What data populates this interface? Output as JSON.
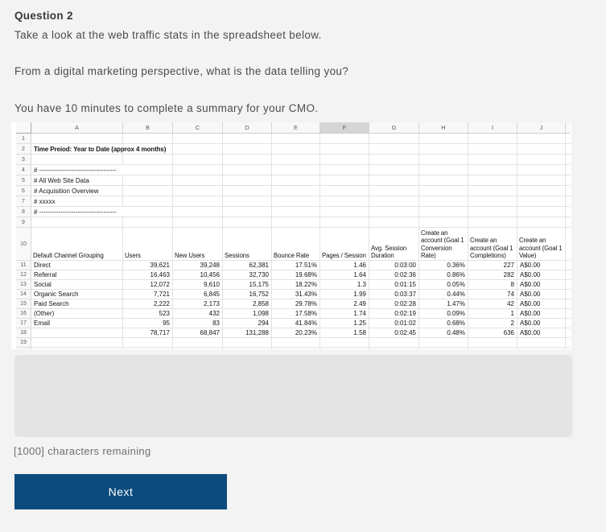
{
  "page": {
    "title": "Question 2",
    "paragraphs": [
      "Take a look at the web traffic stats in the spreadsheet below.",
      "From a digital marketing perspective, what is the data telling you?",
      "You have 10 minutes to complete a summary for your CMO."
    ],
    "answer_value": "",
    "chars_remaining": "[1000] characters remaining",
    "next_label": "Next"
  },
  "colors": {
    "page_bg": "#f3f3f3",
    "button_bg": "#0d4b7e",
    "button_text": "#ffffff",
    "textarea_bg": "#e4e4e4",
    "sheet_bg": "#ffffff",
    "sheet_header_bg": "#f8f8f8",
    "selected_column_bg": "#d5d5d5",
    "gridline": "#e2e2e2"
  },
  "spreadsheet": {
    "selected_column": "F",
    "column_letters": [
      "A",
      "B",
      "C",
      "D",
      "E",
      "F",
      "G",
      "H",
      "I",
      "J"
    ],
    "visible_rows": 19,
    "pre_rows": {
      "2": "Time Preiod: Year to Date (approx 4 months)",
      "4": "# ------------------------------------",
      "5": "# All Web Site Data",
      "6": "# Acquisition Overview",
      "7": "# xxxxx",
      "8": "# ------------------------------------"
    },
    "header_row": [
      "Default Channel Grouping",
      "Users",
      "New Users",
      "Sessions",
      "Bounce Rate",
      "Pages / Session",
      "Avg. Session Duration",
      "Create an account (Goal 1 Conversion Rate)",
      "Create an account (Goal 1 Completions)",
      "Create an account (Goal 1 Value)"
    ],
    "data_rows": [
      [
        "Direct",
        "39,621",
        "39,248",
        "62,381",
        "17.51%",
        "1.46",
        "0:03:00",
        "0.36%",
        "227",
        "A$0.00"
      ],
      [
        "Referral",
        "16,463",
        "10,456",
        "32,730",
        "19.68%",
        "1.64",
        "0:02:36",
        "0.86%",
        "282",
        "A$0.00"
      ],
      [
        "Social",
        "12,072",
        "9,610",
        "15,175",
        "18.22%",
        "1.3",
        "0:01:15",
        "0.05%",
        "8",
        "A$0.00"
      ],
      [
        "Organic Search",
        "7,721",
        "6,845",
        "16,752",
        "31.43%",
        "1.99",
        "0:03:37",
        "0.44%",
        "74",
        "A$0.00"
      ],
      [
        "Paid Search",
        "2,222",
        "2,173",
        "2,858",
        "29.78%",
        "2.49",
        "0:02:28",
        "1.47%",
        "42",
        "A$0.00"
      ],
      [
        "(Other)",
        "523",
        "432",
        "1,098",
        "17.58%",
        "1.74",
        "0:02:19",
        "0.09%",
        "1",
        "A$0.00"
      ],
      [
        "Email",
        "95",
        "83",
        "294",
        "41.84%",
        "1.25",
        "0:01:02",
        "0.68%",
        "2",
        "A$0.00"
      ],
      [
        "",
        "78,717",
        "68,847",
        "131,288",
        "20.23%",
        "1.58",
        "0:02:45",
        "0.48%",
        "636",
        "A$0.00"
      ]
    ]
  }
}
